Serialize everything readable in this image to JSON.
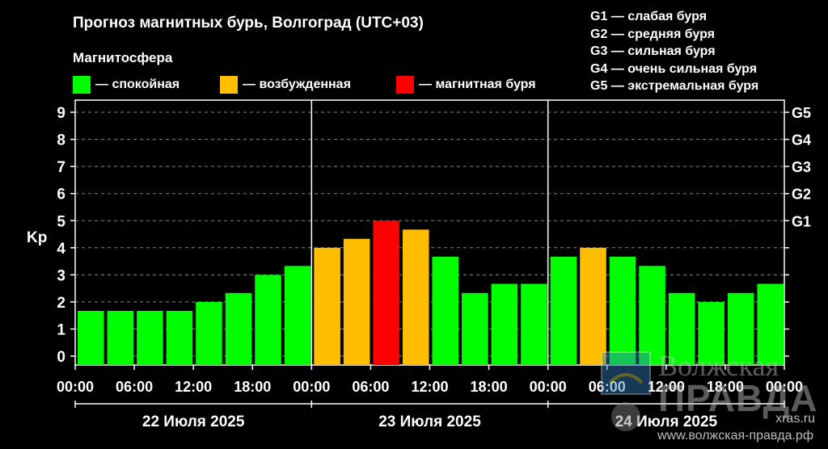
{
  "header": {
    "title": "Прогноз магнитных бурь, Волгоград (UTC+03)",
    "subtitle": "Магнитосфера"
  },
  "legend": [
    {
      "label": "— спокойная",
      "color": "#00ff00"
    },
    {
      "label": "— возбужденная",
      "color": "#ffbf00"
    },
    {
      "label": "— магнитная буря",
      "color": "#ff0000"
    }
  ],
  "storm_levels": [
    "G1 — слабая буря",
    "G2 — средняя буря",
    "G3 — сильная буря",
    "G4 — очень сильная буря",
    "G5 — экстремальная буря"
  ],
  "watermark": {
    "logo_text": "Волжская",
    "logo_text2": "ПРАВДА",
    "url_short": "xras.ru",
    "url": "www.волжская-правда.рф"
  },
  "chart_data": {
    "type": "bar",
    "ylabel": "Kp",
    "ylim": [
      0,
      9
    ],
    "y_ticks": [
      0,
      1,
      2,
      3,
      4,
      5,
      6,
      7,
      8,
      9
    ],
    "right_ticks": [
      {
        "value": 5,
        "label": "G1"
      },
      {
        "value": 6,
        "label": "G2"
      },
      {
        "value": 7,
        "label": "G3"
      },
      {
        "value": 8,
        "label": "G4"
      },
      {
        "value": 9,
        "label": "G5"
      }
    ],
    "x_tick_labels": [
      "00:00",
      "06:00",
      "12:00",
      "18:00",
      "00:00",
      "06:00",
      "12:00",
      "18:00",
      "00:00",
      "06:00",
      "12:00",
      "18:00",
      "00:00"
    ],
    "days": [
      "22 Июля 2025",
      "23 Июля 2025",
      "24 Июля 2025"
    ],
    "values": [
      1.67,
      1.67,
      1.67,
      1.67,
      2.0,
      2.33,
      3.0,
      3.33,
      4.0,
      4.33,
      5.0,
      4.67,
      3.67,
      2.33,
      2.67,
      2.67,
      3.67,
      4.0,
      3.67,
      3.33,
      2.33,
      2.0,
      2.33,
      2.67
    ],
    "colors": {
      "quiet": "#00ff00",
      "active": "#ffbf00",
      "storm": "#ff0000"
    },
    "grid": "dashed horizontal",
    "legend_position": "top"
  }
}
